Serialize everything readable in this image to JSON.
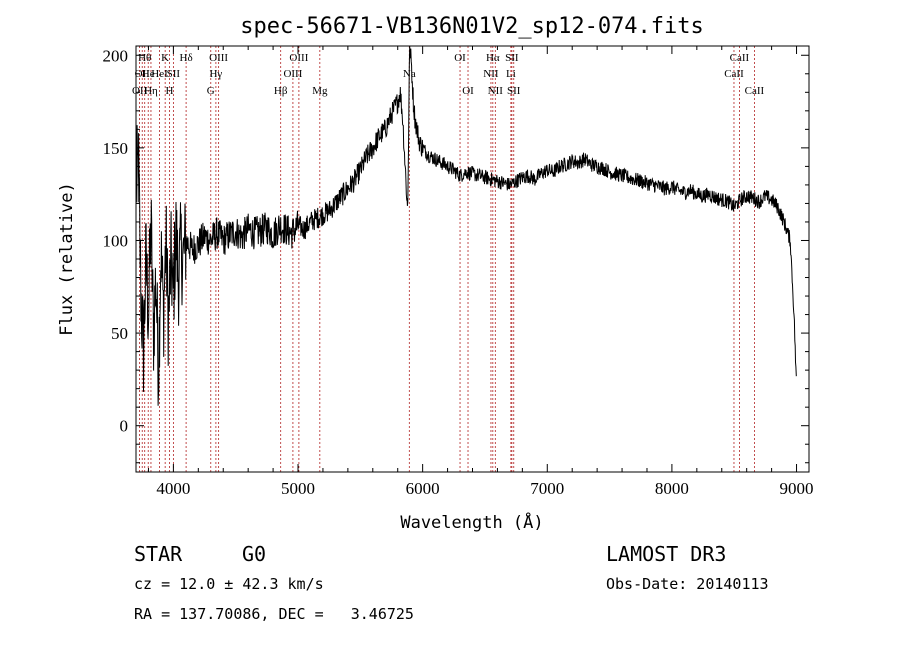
{
  "chart_data": {
    "type": "line",
    "title": "spec-56671-VB136N01V2_sp12-074.fits",
    "xlabel": "Wavelength (Å)",
    "ylabel": "Flux (relative)",
    "xlim": [
      3700,
      9100
    ],
    "ylim": [
      -25,
      205
    ],
    "xticks": [
      4000,
      5000,
      6000,
      7000,
      8000,
      9000
    ],
    "xtick_labels": [
      "4000",
      "5000",
      "6000",
      "7000",
      "8000",
      "9000"
    ],
    "yticks": [
      0,
      50,
      100,
      150,
      200
    ],
    "ytick_labels": [
      "0",
      "50",
      "100",
      "150",
      "200"
    ],
    "series": [
      {
        "name": "flux",
        "x": [
          3700,
          3720,
          3740,
          3760,
          3780,
          3800,
          3820,
          3840,
          3860,
          3880,
          3900,
          3920,
          3940,
          3960,
          3980,
          4000,
          4020,
          4040,
          4060,
          4080,
          4100,
          4150,
          4200,
          4250,
          4300,
          4350,
          4400,
          4450,
          4500,
          4550,
          4600,
          4650,
          4700,
          4750,
          4800,
          4850,
          4900,
          4950,
          5000,
          5050,
          5100,
          5150,
          5200,
          5250,
          5300,
          5350,
          5400,
          5450,
          5500,
          5550,
          5600,
          5650,
          5700,
          5750,
          5800,
          5820,
          5840,
          5860,
          5880,
          5895,
          5910,
          5925,
          5940,
          5960,
          5980,
          6000,
          6050,
          6100,
          6150,
          6200,
          6250,
          6300,
          6350,
          6400,
          6450,
          6500,
          6550,
          6600,
          6650,
          6700,
          6750,
          6800,
          6850,
          6900,
          6950,
          7000,
          7050,
          7100,
          7150,
          7200,
          7250,
          7300,
          7350,
          7400,
          7450,
          7500,
          7550,
          7600,
          7650,
          7700,
          7750,
          7800,
          7850,
          7900,
          7950,
          8000,
          8050,
          8100,
          8150,
          8200,
          8250,
          8300,
          8350,
          8400,
          8450,
          8500,
          8550,
          8600,
          8650,
          8700,
          8750,
          8800,
          8850,
          8900,
          8950,
          8980,
          9000
        ],
        "y": [
          130,
          140,
          70,
          40,
          90,
          60,
          110,
          50,
          80,
          30,
          95,
          60,
          100,
          55,
          90,
          70,
          105,
          80,
          95,
          90,
          100,
          95,
          98,
          102,
          100,
          104,
          100,
          103,
          105,
          102,
          106,
          104,
          105,
          107,
          103,
          108,
          106,
          104,
          108,
          106,
          110,
          112,
          114,
          116,
          120,
          124,
          128,
          132,
          138,
          145,
          150,
          156,
          160,
          168,
          175,
          180,
          166,
          140,
          115,
          205,
          195,
          175,
          165,
          158,
          152,
          150,
          146,
          144,
          142,
          140,
          138,
          135,
          137,
          136,
          135,
          134,
          133,
          132,
          131,
          130,
          132,
          134,
          135,
          133,
          136,
          138,
          137,
          140,
          141,
          143,
          142,
          144,
          141,
          140,
          139,
          137,
          136,
          135,
          134,
          133,
          132,
          131,
          130,
          129,
          128,
          129,
          127,
          126,
          127,
          125,
          124,
          125,
          123,
          122,
          121,
          118,
          122,
          124,
          123,
          121,
          124,
          122,
          118,
          110,
          100,
          60,
          20
        ]
      }
    ],
    "lines": [
      {
        "wave": 3729,
        "label": "OII",
        "row": 2
      },
      {
        "wave": 3750,
        "label": "OII",
        "row": 1
      },
      {
        "wave": 3770,
        "label": "Hθ",
        "row": 0
      },
      {
        "wave": 3798,
        "label": "He",
        "row": 1
      },
      {
        "wave": 3820,
        "label": "Hη",
        "row": 2
      },
      {
        "wave": 3889,
        "label": "HeI",
        "row": 1
      },
      {
        "wave": 3934,
        "label": "K",
        "row": 0
      },
      {
        "wave": 3969,
        "label": "H",
        "row": 2
      },
      {
        "wave": 4000,
        "label": "SII",
        "row": 1
      },
      {
        "wave": 4102,
        "label": "Hδ",
        "row": 0
      },
      {
        "wave": 4300,
        "label": "G",
        "row": 2
      },
      {
        "wave": 4341,
        "label": "Hγ",
        "row": 1
      },
      {
        "wave": 4363,
        "label": "OIII",
        "row": 0
      },
      {
        "wave": 4861,
        "label": "Hβ",
        "row": 2
      },
      {
        "wave": 4959,
        "label": "OIII",
        "row": 1
      },
      {
        "wave": 5007,
        "label": "OIII",
        "row": 0
      },
      {
        "wave": 5175,
        "label": "Mg",
        "row": 2
      },
      {
        "wave": 5893,
        "label": "Na",
        "row": 1
      },
      {
        "wave": 6300,
        "label": "OI",
        "row": 0
      },
      {
        "wave": 6364,
        "label": "OI",
        "row": 2
      },
      {
        "wave": 6548,
        "label": "NII",
        "row": 1
      },
      {
        "wave": 6563,
        "label": "Hα",
        "row": 0
      },
      {
        "wave": 6583,
        "label": "NII",
        "row": 2
      },
      {
        "wave": 6708,
        "label": "Li",
        "row": 1
      },
      {
        "wave": 6716,
        "label": "SII",
        "row": 0
      },
      {
        "wave": 6731,
        "label": "SII",
        "row": 2
      },
      {
        "wave": 8498,
        "label": "CaII",
        "row": 1
      },
      {
        "wave": 8542,
        "label": "CaII",
        "row": 0
      },
      {
        "wave": 8662,
        "label": "CaII",
        "row": 2
      }
    ]
  },
  "info": {
    "class": "STAR",
    "subclass": "G0",
    "survey": "LAMOST DR3",
    "cz": "cz = 12.0 ± 42.3 km/s",
    "obs_date": "Obs-Date: 20140113",
    "coords": "RA = 137.70086, DEC =   3.46725"
  },
  "colors": {
    "spectrum": "#000000",
    "line_markers": "#b22222",
    "axes": "#000000",
    "background": "#ffffff"
  }
}
